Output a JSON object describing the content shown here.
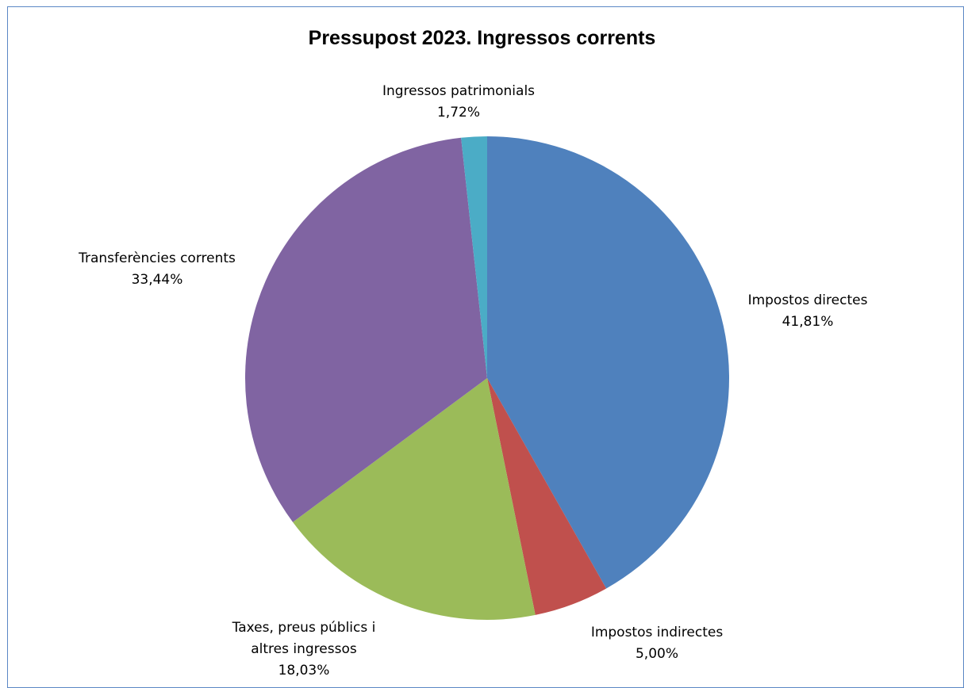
{
  "chart_data": {
    "type": "pie",
    "title": "Pressupost 2023. Ingressos corrents",
    "slices": [
      {
        "label": [
          "Impostos directes"
        ],
        "value": 41.81,
        "display": "41,81%",
        "color": "#4f81bd"
      },
      {
        "label": [
          "Impostos indirectes"
        ],
        "value": 5.0,
        "display": "5,00%",
        "color": "#c0504d"
      },
      {
        "label": [
          "Taxes, preus públics i",
          "altres ingressos"
        ],
        "value": 18.03,
        "display": "18,03%",
        "color": "#9bbb59"
      },
      {
        "label": [
          "Transferències corrents"
        ],
        "value": 33.44,
        "display": "33,44%",
        "color": "#8064a2"
      },
      {
        "label": [
          "Ingressos patrimonials"
        ],
        "value": 1.72,
        "display": "1,72%",
        "color": "#4bacc6"
      }
    ]
  }
}
